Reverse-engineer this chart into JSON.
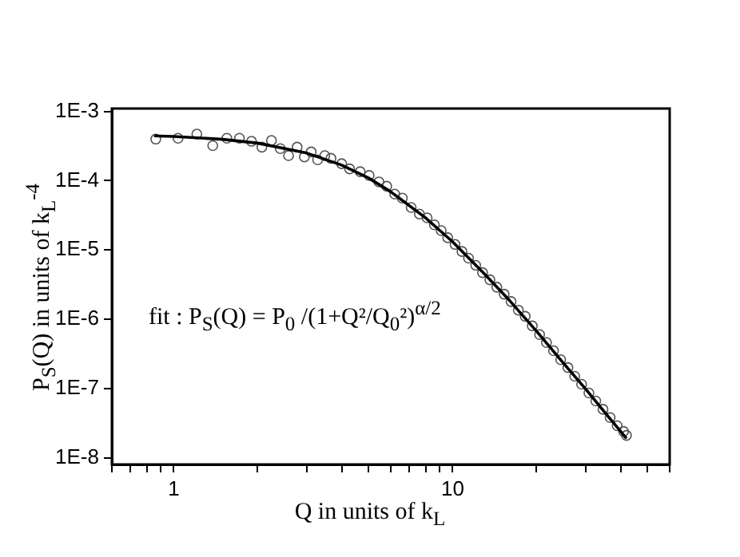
{
  "chart_data": {
    "type": "scatter",
    "xlabel": "Q in units of k$_{L}$",
    "ylabel": "P$_{S}$(Q) in units of k$_{L}$$^{-4}$",
    "log": "xy",
    "grid": false,
    "legend": false,
    "xlim": [
      0.6,
      60
    ],
    "ylim": [
      8e-09,
      0.0011
    ],
    "xticks": [
      {
        "value": 0.6,
        "label": null
      },
      {
        "value": 0.7,
        "label": null
      },
      {
        "value": 0.8,
        "label": null
      },
      {
        "value": 0.9,
        "label": null
      },
      1,
      {
        "value": 2,
        "label": null
      },
      {
        "value": 3,
        "label": null
      },
      {
        "value": 4,
        "label": null
      },
      {
        "value": 5,
        "label": null
      },
      {
        "value": 6,
        "label": null
      },
      {
        "value": 7,
        "label": null
      },
      {
        "value": 8,
        "label": null
      },
      {
        "value": 9,
        "label": null
      },
      10,
      {
        "value": 20,
        "label": null
      },
      {
        "value": 30,
        "label": null
      },
      {
        "value": 40,
        "label": null
      },
      {
        "value": 50,
        "label": null
      },
      {
        "value": 60,
        "label": null
      }
    ],
    "yticks": [
      {
        "value": 1e-08,
        "label": "1E-8"
      },
      {
        "value": 1e-07,
        "label": "1E-7"
      },
      {
        "value": 1e-06,
        "label": "1E-6"
      },
      {
        "value": 1e-05,
        "label": "1E-5"
      },
      {
        "value": 0.0001,
        "label": "1E-4"
      },
      {
        "value": 0.001,
        "label": "1E-3"
      }
    ],
    "annotations": [
      "fit : P$_{S}$(Q) = P$_{0}$ /(1+Q²/Q$_{0}$²)$^{α/2}$"
    ],
    "series": [
      {
        "type": "scatter",
        "marker": "circle",
        "color": "#555555",
        "x": [
          0.862,
          1.036,
          1.21,
          1.38,
          1.55,
          1.72,
          1.9,
          2.07,
          2.24,
          2.41,
          2.58,
          2.77,
          2.94,
          3.11,
          3.28,
          3.48,
          3.66,
          4.0,
          4.27,
          4.66,
          5.02,
          5.44,
          5.8,
          6.2,
          6.6,
          7.1,
          7.6,
          8.1,
          8.6,
          9.1,
          9.6,
          10.2,
          10.8,
          11.4,
          12.1,
          12.8,
          13.6,
          14.4,
          15.3,
          16.2,
          17.2,
          18.2,
          19.3,
          20.5,
          21.7,
          23,
          24.4,
          25.9,
          27.4,
          29,
          30.8,
          32.6,
          34.6,
          36.7,
          38.9,
          41,
          42
        ],
        "values": [
          0.000398,
          0.00041,
          0.00047,
          0.00032,
          0.00041,
          0.00041,
          0.00037,
          0.000305,
          0.00038,
          0.00029,
          0.00023,
          0.000305,
          0.00022,
          0.00026,
          0.0002,
          0.00023,
          0.00021,
          0.000176,
          0.000148,
          0.000135,
          0.000119,
          9.6e-05,
          8.3e-05,
          6.4e-05,
          5.6e-05,
          4.1e-05,
          3.3e-05,
          2.9e-05,
          2.3e-05,
          1.9e-05,
          1.5e-05,
          1.2e-05,
          9.5e-06,
          7.6e-06,
          6e-06,
          4.7e-06,
          3.7e-06,
          2.9e-06,
          2.3e-06,
          1.8e-06,
          1.35e-06,
          1.1e-06,
          8e-07,
          6e-07,
          4.6e-07,
          3.5e-07,
          2.6e-07,
          2e-07,
          1.5e-07,
          1.15e-07,
          8.6e-08,
          6.6e-08,
          5e-08,
          3.8e-08,
          2.9e-08,
          2.4e-08,
          2.1e-08
        ]
      },
      {
        "type": "line",
        "marker": "none",
        "color": "#000000",
        "x": [
          0.85,
          1,
          1.5,
          2,
          3,
          4,
          5,
          6,
          8,
          10,
          13,
          16,
          20,
          25,
          30,
          36,
          42
        ],
        "values": [
          0.000444,
          0.000434,
          0.000395,
          0.000348,
          0.00025,
          0.000168,
          0.000109,
          6.9e-05,
          2.9e-05,
          1.31e-05,
          4.5e-06,
          1.86e-06,
          6.7e-07,
          2.3e-07,
          9.8e-08,
          4e-08,
          1.9e-08
        ]
      }
    ]
  }
}
